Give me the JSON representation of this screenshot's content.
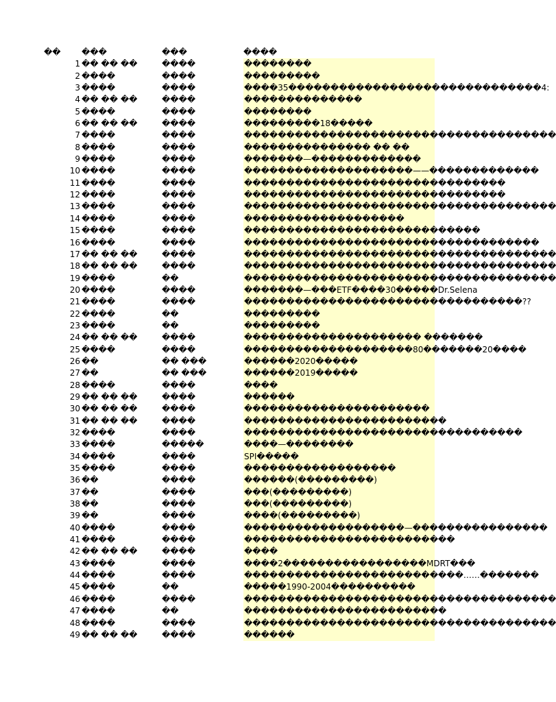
{
  "header": {
    "col_a": "��",
    "col_b": "���",
    "col_c": "���",
    "col_d": "����"
  },
  "rows": [
    {
      "n": "1",
      "b": "�� �� ��",
      "c": "����",
      "d": "��������"
    },
    {
      "n": "2",
      "b": "����",
      "c": "����",
      "d": "���������"
    },
    {
      "n": "3",
      "b": "����",
      "c": "����",
      "d": "����35������������������������������4:"
    },
    {
      "n": "4",
      "b": "�� �� ��",
      "c": "����",
      "d": "��������������"
    },
    {
      "n": "5",
      "b": "����",
      "c": "����",
      "d": "��������"
    },
    {
      "n": "6",
      "b": "�� �� ��",
      "c": "����",
      "d": "���������18�����"
    },
    {
      "n": "7",
      "b": "����",
      "c": "����",
      "d": "�������������������������������������"
    },
    {
      "n": "8",
      "b": "����",
      "c": "����",
      "d": "��������������� �� ��"
    },
    {
      "n": "9",
      "b": "����",
      "c": "����",
      "d": "�������—�������������"
    },
    {
      "n": "10",
      "b": "����",
      "c": "����",
      "d": "��������������������——�������������"
    },
    {
      "n": "11",
      "b": "����",
      "c": "����",
      "d": "�������������������������������"
    },
    {
      "n": "12",
      "b": "����",
      "c": "����",
      "d": "�������������������������������"
    },
    {
      "n": "13",
      "b": "����",
      "c": "����",
      "d": "�������������������������������������"
    },
    {
      "n": "14",
      "b": "����",
      "c": "����",
      "d": "�������������������"
    },
    {
      "n": "15",
      "b": "����",
      "c": "����",
      "d": "����������������������������"
    },
    {
      "n": "16",
      "b": "����",
      "c": "����",
      "d": "�����������������������������������"
    },
    {
      "n": "17",
      "b": "�� �� ��",
      "c": "����",
      "d": "�������������������������������������"
    },
    {
      "n": "18",
      "b": "�� �� ��",
      "c": "����",
      "d": "�������������������������������������"
    },
    {
      "n": "19",
      "b": "����",
      "c": "��",
      "d": "�������������������������������������"
    },
    {
      "n": "20",
      "b": "����",
      "c": "����",
      "d": "�������—���ETF����30�����Dr.Selena"
    },
    {
      "n": "21",
      "b": "����",
      "c": "����",
      "d": "���������������������������������??"
    },
    {
      "n": "22",
      "b": "����",
      "c": "��",
      "d": "���������"
    },
    {
      "n": "23",
      "b": "����",
      "c": "��",
      "d": "���������"
    },
    {
      "n": "24",
      "b": "�� �� ��",
      "c": "����",
      "d": "��������������������� �������"
    },
    {
      "n": "25",
      "b": "����",
      "c": "����",
      "d": "��������������������80�������20����"
    },
    {
      "n": "26",
      "b": "��",
      "c": "�� ���",
      "d": "������2020�����"
    },
    {
      "n": "27",
      "b": "��",
      "c": "�� ���",
      "d": "������2019�����"
    },
    {
      "n": "28",
      "b": "����",
      "c": "����",
      "d": "����"
    },
    {
      "n": "29",
      "b": "�� �� ��",
      "c": "����",
      "d": "������"
    },
    {
      "n": "30",
      "b": "�� �� ��",
      "c": "����",
      "d": "����������������������"
    },
    {
      "n": "31",
      "b": "�� �� ��",
      "c": "����",
      "d": "������������������������"
    },
    {
      "n": "32",
      "b": "����",
      "c": "����",
      "d": "���������������������������������"
    },
    {
      "n": "33",
      "b": "����",
      "c": "�����",
      "d": "����—��������"
    },
    {
      "n": "34",
      "b": "����",
      "c": "����",
      "d": "SPI�����"
    },
    {
      "n": "35",
      "b": "����",
      "c": "����",
      "d": "������������������"
    },
    {
      "n": "36",
      "b": "��",
      "c": "����",
      "d": "������(���������)"
    },
    {
      "n": "37",
      "b": "��",
      "c": "����",
      "d": "���(���������)"
    },
    {
      "n": "38",
      "b": "��",
      "c": "����",
      "d": "���(���������)"
    },
    {
      "n": "39",
      "b": "��",
      "c": "����",
      "d": "����(���������)"
    },
    {
      "n": "40",
      "b": "����",
      "c": "����",
      "d": "�������������������—����������������"
    },
    {
      "n": "41",
      "b": "����",
      "c": "����",
      "d": "�������������������������"
    },
    {
      "n": "42",
      "b": "�� �� ��",
      "c": "����",
      "d": "����"
    },
    {
      "n": "43",
      "b": "����",
      "c": "����",
      "d": "����2�����������������MDRT���"
    },
    {
      "n": "44",
      "b": "����",
      "c": "����",
      "d": "��������������������������……�������"
    },
    {
      "n": "45",
      "b": "����",
      "c": "��",
      "d": "�����1990-2004����������"
    },
    {
      "n": "46",
      "b": "����",
      "c": "����",
      "d": "�������������������������������������"
    },
    {
      "n": "47",
      "b": "����",
      "c": "��",
      "d": "������������������������"
    },
    {
      "n": "48",
      "b": "����",
      "c": "����",
      "d": "�������������������������������������"
    },
    {
      "n": "49",
      "b": "�� �� ��",
      "c": "����",
      "d": "������"
    }
  ],
  "colors": {
    "highlight": "#ffffcc",
    "background": "#ffffff",
    "text": "#000000"
  }
}
